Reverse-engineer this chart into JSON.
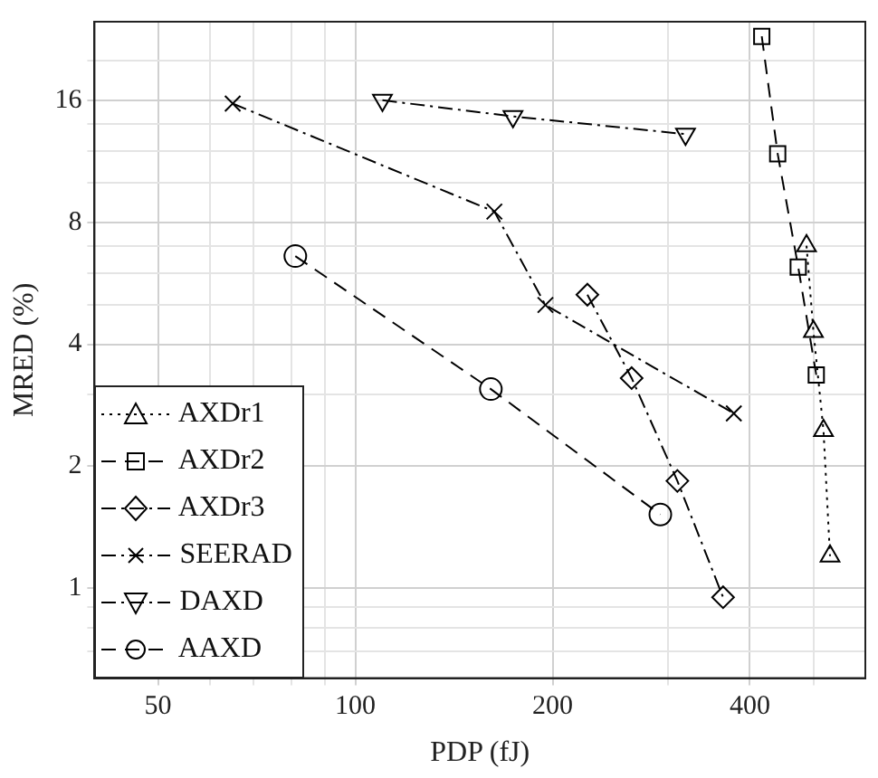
{
  "chart_data": {
    "type": "line",
    "xlabel": "PDP (fJ)",
    "ylabel": "MRED (%)",
    "log": "xy",
    "grid": true,
    "legend": "bottom left",
    "xlim": [
      40,
      600
    ],
    "ylim": [
      0.6,
      25
    ],
    "xticks": [
      50,
      100,
      200,
      400,
      {
        "value": 60,
        "label": null
      },
      {
        "value": 70,
        "label": null
      },
      {
        "value": 80,
        "label": null
      },
      {
        "value": 90,
        "label": null
      },
      {
        "value": 300,
        "label": null
      },
      {
        "value": 500,
        "label": null
      }
    ],
    "yticks": [
      1,
      2,
      4,
      8,
      16,
      {
        "value": 0.7,
        "label": null
      },
      {
        "value": 0.8,
        "label": null
      },
      {
        "value": 0.9,
        "label": null
      },
      {
        "value": 3,
        "label": null
      },
      {
        "value": 5,
        "label": null
      },
      {
        "value": 6,
        "label": null
      },
      {
        "value": 7,
        "label": null
      },
      {
        "value": 10,
        "label": null
      },
      {
        "value": 12,
        "label": null
      },
      {
        "value": 14,
        "label": null
      },
      {
        "value": 20,
        "label": null
      }
    ],
    "series": [
      {
        "name": "AXDr1",
        "color": "#000000",
        "marker": "triangle",
        "line_style": "dotted",
        "x": [
          488,
          500,
          518,
          530
        ],
        "values": [
          7.0,
          4.3,
          2.45,
          1.2
        ]
      },
      {
        "name": "AXDr2",
        "color": "#000000",
        "marker": "square",
        "line_style": "dashed",
        "x": [
          417,
          441,
          474,
          505
        ],
        "values": [
          23,
          11.8,
          6.2,
          3.36
        ]
      },
      {
        "name": "AXDr3",
        "color": "#000000",
        "marker": "diamond",
        "line_style": "dashdot",
        "x": [
          226,
          264,
          310,
          364
        ],
        "values": [
          5.3,
          3.3,
          1.84,
          0.95
        ]
      },
      {
        "name": "SEERAD",
        "color": "#000000",
        "marker": "cross",
        "line_style": "dashdot",
        "x": [
          65,
          163,
          195,
          378
        ],
        "values": [
          15.7,
          8.5,
          5.0,
          2.7
        ]
      },
      {
        "name": "DAXD",
        "color": "#000000",
        "marker": "triangle-down",
        "line_style": "dashdot",
        "x": [
          110,
          174,
          319
        ],
        "values": [
          16,
          14.6,
          13.2
        ]
      },
      {
        "name": "AAXD",
        "color": "#000000",
        "marker": "circle",
        "line_style": "dashed",
        "x": [
          81,
          161,
          292
        ],
        "values": [
          6.6,
          3.1,
          1.52
        ]
      }
    ]
  }
}
